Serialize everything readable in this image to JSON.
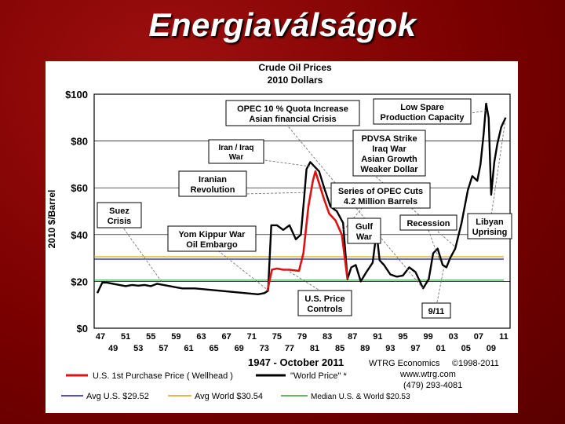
{
  "slide_title": "Energiaválságok",
  "chart_data": {
    "type": "line",
    "title": "Crude Oil Prices",
    "subtitle": "2010 Dollars",
    "ylabel": "2010 $/Barrel",
    "xlabel": "1947 - October 2011",
    "ylim": [
      0,
      100
    ],
    "y_ticks": [
      "$0",
      "$20",
      "$40",
      "$60",
      "$80",
      "$100"
    ],
    "y_tick_values": [
      0,
      20,
      40,
      60,
      80,
      100
    ],
    "x_ticks_top": [
      "47",
      "51",
      "55",
      "59",
      "63",
      "67",
      "71",
      "75",
      "79",
      "83",
      "87",
      "91",
      "95",
      "99",
      "03",
      "07",
      "11"
    ],
    "x_ticks_bottom": [
      "49",
      "53",
      "57",
      "61",
      "65",
      "69",
      "73",
      "77",
      "81",
      "85",
      "89",
      "93",
      "97",
      "01",
      "05",
      "09"
    ],
    "series": [
      {
        "name": "U.S. 1st Purchase Price ( Wellhead )",
        "color": "#e01010",
        "points": [
          [
            1973.5,
            16
          ],
          [
            1974.2,
            25
          ],
          [
            1975,
            25.5
          ],
          [
            1976,
            25
          ],
          [
            1977,
            25
          ],
          [
            1978.5,
            24.5
          ],
          [
            1979.2,
            32
          ],
          [
            1980,
            52
          ],
          [
            1980.7,
            63
          ],
          [
            1981.1,
            67
          ],
          [
            1981.8,
            61
          ],
          [
            1982.5,
            55
          ],
          [
            1983.3,
            49
          ],
          [
            1984.3,
            46
          ],
          [
            1985.3,
            40
          ],
          [
            1986.2,
            21
          ]
        ]
      },
      {
        "name": "\"World Price\" *",
        "color": "#000000",
        "points": [
          [
            1946.5,
            15
          ],
          [
            1947.3,
            19.5
          ],
          [
            1948,
            19.5
          ],
          [
            1949,
            19
          ],
          [
            1950,
            18.5
          ],
          [
            1951,
            18
          ],
          [
            1952,
            18.5
          ],
          [
            1953,
            18.2
          ],
          [
            1954,
            18.5
          ],
          [
            1955,
            18
          ],
          [
            1956,
            19
          ],
          [
            1957,
            18.5
          ],
          [
            1958,
            18
          ],
          [
            1959,
            17.5
          ],
          [
            1960,
            17
          ],
          [
            1962,
            17
          ],
          [
            1964,
            16.5
          ],
          [
            1966,
            16
          ],
          [
            1968,
            15.5
          ],
          [
            1970,
            15
          ],
          [
            1972,
            14.5
          ],
          [
            1973,
            15
          ],
          [
            1973.6,
            16
          ],
          [
            1974.1,
            44
          ],
          [
            1975,
            44
          ],
          [
            1976,
            42
          ],
          [
            1977,
            44
          ],
          [
            1978,
            38
          ],
          [
            1978.8,
            40
          ],
          [
            1979.3,
            55
          ],
          [
            1979.7,
            68
          ],
          [
            1980.3,
            71
          ],
          [
            1981,
            69
          ],
          [
            1981.7,
            67
          ],
          [
            1982.5,
            60
          ],
          [
            1983.5,
            52
          ],
          [
            1984.5,
            50
          ],
          [
            1985.5,
            45
          ],
          [
            1986.2,
            21
          ],
          [
            1986.8,
            26
          ],
          [
            1987.5,
            27
          ],
          [
            1988.3,
            20
          ],
          [
            1989.2,
            24
          ],
          [
            1990.2,
            28
          ],
          [
            1990.8,
            41
          ],
          [
            1991.3,
            29
          ],
          [
            1992,
            27
          ],
          [
            1993,
            23
          ],
          [
            1994,
            22
          ],
          [
            1995,
            22.5
          ],
          [
            1996,
            26
          ],
          [
            1997,
            24
          ],
          [
            1998.2,
            17
          ],
          [
            1999.1,
            21
          ],
          [
            1999.8,
            32
          ],
          [
            2000.5,
            34
          ],
          [
            2001.3,
            27
          ],
          [
            2001.9,
            26
          ],
          [
            2002.5,
            30
          ],
          [
            2003.3,
            34
          ],
          [
            2004.3,
            45
          ],
          [
            2005.3,
            59
          ],
          [
            2006,
            65
          ],
          [
            2006.8,
            63
          ],
          [
            2007.3,
            70
          ],
          [
            2007.8,
            83
          ],
          [
            2008.2,
            96
          ],
          [
            2008.6,
            90
          ],
          [
            2009,
            57
          ],
          [
            2009.5,
            71
          ],
          [
            2010,
            79
          ],
          [
            2010.6,
            86
          ],
          [
            2011.3,
            90
          ]
        ]
      },
      {
        "name": "Avg U.S. $29.52",
        "color": "#1a1aa0",
        "value": 29.52
      },
      {
        "name": "Avg World $30.54",
        "color": "#e0a020",
        "value": 30.54
      },
      {
        "name": "Median U.S. & World $20.53",
        "color": "#30a030",
        "value": 20.53
      }
    ],
    "annotations": [
      {
        "id": "opec-quota",
        "lines": [
          "OPEC 10 % Quota Increase",
          "Asian financial Crisis"
        ]
      },
      {
        "id": "low-spare",
        "lines": [
          "Low Spare",
          "Production Capacity"
        ]
      },
      {
        "id": "iran-iraq",
        "lines": [
          "Iran / Iraq",
          "War"
        ]
      },
      {
        "id": "pdvsa",
        "lines": [
          "PDVSA Strike",
          "Iraq War",
          "Asian Growth",
          "Weaker Dollar"
        ]
      },
      {
        "id": "iranian-rev",
        "lines": [
          "Iranian",
          "Revolution"
        ]
      },
      {
        "id": "opec-cuts",
        "lines": [
          "Series of OPEC Cuts",
          "4.2 Million Barrels"
        ]
      },
      {
        "id": "suez",
        "lines": [
          "Suez",
          "Crisis"
        ]
      },
      {
        "id": "gulf-war",
        "lines": [
          "Gulf",
          "War"
        ]
      },
      {
        "id": "recession",
        "lines": [
          "Recession"
        ]
      },
      {
        "id": "libyan",
        "lines": [
          "Libyan",
          "Uprising"
        ]
      },
      {
        "id": "yom-kippur",
        "lines": [
          "Yom Kippur War",
          "Oil Embargo"
        ]
      },
      {
        "id": "price-controls",
        "lines": [
          "U.S. Price",
          "Controls"
        ]
      },
      {
        "id": "nine-eleven",
        "lines": [
          "9/11"
        ]
      }
    ],
    "credits": {
      "company": "WTRG Economics",
      "copyright": "©1998-2011",
      "web": "www.wtrg.com",
      "phone": "(479) 293-4081"
    }
  }
}
